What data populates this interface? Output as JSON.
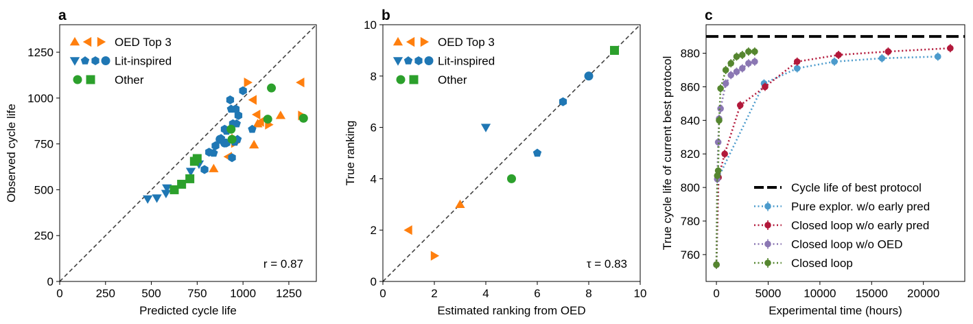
{
  "chart_data": [
    {
      "type": "scatter",
      "panel_label": "a",
      "xlabel": "Predicted cycle life",
      "ylabel": "Observed cycle life",
      "xlim": [
        0,
        1400
      ],
      "ylim": [
        0,
        1400
      ],
      "xticks": [
        "0",
        "250",
        "500",
        "750",
        "1000",
        "1250"
      ],
      "yticks": [
        "0",
        "250",
        "500",
        "750",
        "1000",
        "1250"
      ],
      "diagonal": true,
      "annotation": "r = 0.87",
      "legend": {
        "placement": "upper-left",
        "entries": [
          {
            "label": "OED Top 3",
            "markers": [
              "triangle-up",
              "triangle-left",
              "triangle-right"
            ],
            "color": "#ff7f0e"
          },
          {
            "label": "Lit-inspired",
            "markers": [
              "triangle-down",
              "pentagon",
              "hexagon",
              "circle"
            ],
            "color": "#1f77b4"
          },
          {
            "label": "Other",
            "markers": [
              "circle",
              "square"
            ],
            "color": "#2ca02c"
          }
        ]
      },
      "series": [
        {
          "group": "oed",
          "marker": "triangle-up",
          "color": "#ff7f0e",
          "points": [
            [
              840,
              615
            ],
            [
              1060,
              745
            ],
            [
              1205,
              905
            ],
            [
              1080,
              860
            ],
            [
              940,
              780
            ]
          ]
        },
        {
          "group": "oed",
          "marker": "triangle-left",
          "color": "#ff7f0e",
          "points": [
            [
              1315,
              1085
            ],
            [
              1075,
              910
            ],
            [
              1055,
              990
            ],
            [
              920,
              680
            ],
            [
              1095,
              870
            ]
          ]
        },
        {
          "group": "oed",
          "marker": "triangle-right",
          "color": "#ff7f0e",
          "points": [
            [
              1025,
              1085
            ],
            [
              1320,
              905
            ],
            [
              1140,
              855
            ],
            [
              955,
              755
            ]
          ]
        },
        {
          "group": "lit",
          "marker": "triangle-down",
          "color": "#1f77b4",
          "points": [
            [
              480,
              450
            ],
            [
              530,
              455
            ],
            [
              580,
              480
            ],
            [
              585,
              510
            ],
            [
              715,
              600
            ],
            [
              760,
              640
            ]
          ]
        },
        {
          "group": "lit",
          "marker": "pentagon",
          "color": "#1f77b4",
          "points": [
            [
              935,
              940
            ],
            [
              965,
              860
            ],
            [
              880,
              780
            ],
            [
              955,
              760
            ],
            [
              970,
              775
            ],
            [
              1050,
              830
            ],
            [
              910,
              820
            ],
            [
              840,
              700
            ]
          ]
        },
        {
          "group": "lit",
          "marker": "hexagon",
          "color": "#1f77b4",
          "points": [
            [
              930,
              990
            ],
            [
              1000,
              1040
            ],
            [
              960,
              940
            ],
            [
              975,
              905
            ],
            [
              945,
              860
            ],
            [
              900,
              830
            ],
            [
              910,
              755
            ],
            [
              850,
              740
            ],
            [
              815,
              705
            ],
            [
              790,
              610
            ],
            [
              940,
              675
            ]
          ]
        },
        {
          "group": "lit",
          "marker": "circle",
          "color": "#1f77b4",
          "points": [
            [
              875,
              775
            ],
            [
              900,
              755
            ]
          ]
        },
        {
          "group": "other",
          "marker": "circle",
          "color": "#2ca02c",
          "points": [
            [
              1155,
              1055
            ],
            [
              1135,
              885
            ],
            [
              1330,
              890
            ],
            [
              935,
              830
            ],
            [
              940,
              775
            ]
          ]
        },
        {
          "group": "other",
          "marker": "square",
          "color": "#2ca02c",
          "points": [
            [
              625,
              500
            ],
            [
              665,
              530
            ],
            [
              710,
              560
            ],
            [
              735,
              655
            ],
            [
              750,
              670
            ]
          ]
        }
      ]
    },
    {
      "type": "scatter",
      "panel_label": "b",
      "xlabel": "Estimated ranking from OED",
      "ylabel": "True ranking",
      "xlim": [
        0,
        10
      ],
      "ylim": [
        0,
        10
      ],
      "xticks": [
        "0",
        "2",
        "4",
        "6",
        "8",
        "10"
      ],
      "yticks": [
        "0",
        "2",
        "4",
        "6",
        "8",
        "10"
      ],
      "diagonal": true,
      "annotation": "τ = 0.83",
      "legend": {
        "placement": "upper-left",
        "entries": [
          {
            "label": "OED Top 3",
            "markers": [
              "triangle-up",
              "triangle-left",
              "triangle-right"
            ],
            "color": "#ff7f0e"
          },
          {
            "label": "Lit-inspired",
            "markers": [
              "triangle-down",
              "pentagon",
              "hexagon",
              "circle"
            ],
            "color": "#1f77b4"
          },
          {
            "label": "Other",
            "markers": [
              "circle",
              "square"
            ],
            "color": "#2ca02c"
          }
        ]
      },
      "series": [
        {
          "group": "oed",
          "marker": "triangle-left",
          "color": "#ff7f0e",
          "points": [
            [
              1,
              2
            ]
          ]
        },
        {
          "group": "oed",
          "marker": "triangle-right",
          "color": "#ff7f0e",
          "points": [
            [
              2,
              1
            ]
          ]
        },
        {
          "group": "oed",
          "marker": "triangle-up",
          "color": "#ff7f0e",
          "points": [
            [
              3,
              3
            ]
          ]
        },
        {
          "group": "lit",
          "marker": "triangle-down",
          "color": "#1f77b4",
          "points": [
            [
              4,
              6
            ]
          ]
        },
        {
          "group": "lit",
          "marker": "pentagon",
          "color": "#1f77b4",
          "points": [
            [
              6,
              5
            ]
          ]
        },
        {
          "group": "lit",
          "marker": "hexagon",
          "color": "#1f77b4",
          "points": [
            [
              7,
              7
            ]
          ]
        },
        {
          "group": "lit",
          "marker": "circle",
          "color": "#1f77b4",
          "points": [
            [
              8,
              8
            ]
          ]
        },
        {
          "group": "other",
          "marker": "circle",
          "color": "#2ca02c",
          "points": [
            [
              5,
              4
            ]
          ]
        },
        {
          "group": "other",
          "marker": "square",
          "color": "#2ca02c",
          "points": [
            [
              9,
              9
            ]
          ]
        }
      ]
    },
    {
      "type": "line",
      "panel_label": "c",
      "xlabel": "Experimental time (hours)",
      "ylabel": "True cycle life of current best protocol",
      "xlim": [
        -1000,
        24000
      ],
      "ylim": [
        744,
        897
      ],
      "xticks": [
        "0",
        "5000",
        "10000",
        "15000",
        "20000"
      ],
      "yticks": [
        "760",
        "780",
        "800",
        "820",
        "840",
        "860",
        "880"
      ],
      "reference_line": {
        "label": "Cycle life of best protocol",
        "y": 890,
        "color": "#000000"
      },
      "legend": {
        "placement": "lower-right"
      },
      "series": [
        {
          "name": "Pure explor. w/o early pred",
          "color": "#4c9bcc",
          "style": "dotted",
          "x": [
            0,
            200,
            4600,
            7800,
            11400,
            16000,
            21400
          ],
          "y": [
            754,
            806,
            862,
            871,
            875,
            877,
            878
          ]
        },
        {
          "name": "Closed loop w/o early pred",
          "color": "#b2183a",
          "style": "dotted",
          "x": [
            0,
            200,
            800,
            2300,
            4700,
            7800,
            11800,
            16600,
            22600
          ],
          "y": [
            754,
            806,
            820,
            849,
            860,
            875,
            879,
            881,
            883
          ]
        },
        {
          "name": "Closed loop w/o OED",
          "color": "#8b77b3",
          "style": "dotted",
          "x": [
            0,
            80,
            170,
            260,
            400,
            900,
            1400,
            1950,
            2500,
            3100,
            3700
          ],
          "y": [
            754,
            805,
            827,
            841,
            847,
            862,
            867,
            869,
            871,
            874,
            875
          ]
        },
        {
          "name": "Closed loop",
          "color": "#55862f",
          "style": "dotted",
          "x": [
            0,
            80,
            170,
            260,
            400,
            900,
            1400,
            1950,
            2500,
            3100,
            3700
          ],
          "y": [
            754,
            807,
            810,
            840,
            859,
            870,
            874,
            878,
            879,
            881,
            881
          ]
        }
      ]
    }
  ]
}
